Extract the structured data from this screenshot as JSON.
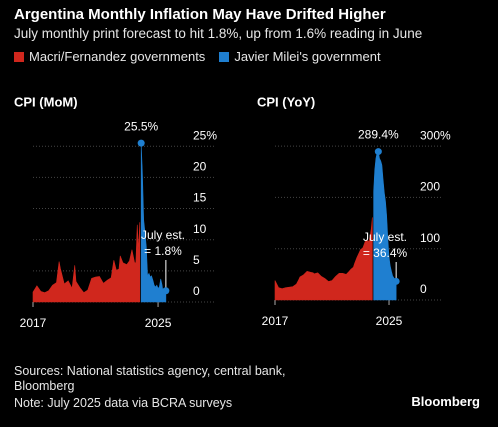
{
  "header": {
    "title": "Argentina Monthly Inflation May Have Drifted Higher",
    "subtitle": "July monthly print forecast to hit 1.8%, up from 1.6% reading in June"
  },
  "footer": {
    "source": "Sources: National statistics agency, central bank, Bloomberg",
    "note": "Note: July 2025 data via BCRA surveys",
    "brand": "Bloomberg"
  },
  "chart_data": [
    {
      "type": "area",
      "title": "CPI (MoM)",
      "annotation": "July est.",
      "x": [
        2017.0,
        2017.25,
        2017.5,
        2017.75,
        2018.0,
        2018.25,
        2018.5,
        2018.67,
        2018.75,
        2019.0,
        2019.25,
        2019.5,
        2019.67,
        2019.75,
        2020.0,
        2020.25,
        2020.5,
        2020.75,
        2021.0,
        2021.25,
        2021.5,
        2021.75,
        2022.0,
        2022.17,
        2022.33,
        2022.5,
        2022.58,
        2022.75,
        2023.0,
        2023.17,
        2023.33,
        2023.5,
        2023.58,
        2023.67,
        2023.75,
        2023.83,
        2023.92,
        2024.0,
        2024.08,
        2024.17,
        2024.25,
        2024.33,
        2024.42,
        2024.5,
        2024.58,
        2024.67,
        2024.75,
        2024.83,
        2024.92,
        2025.0,
        2025.08,
        2025.17,
        2025.25,
        2025.33,
        2025.42,
        2025.5
      ],
      "xlim": [
        2017,
        2025.7
      ],
      "xticks": [
        2017,
        2025
      ],
      "ylim": [
        0,
        26
      ],
      "yticks": [
        0,
        5,
        10,
        15,
        20,
        {
          "value": 25,
          "label": "25%"
        }
      ],
      "grid": true,
      "series": [
        {
          "name": "Macri/Fernandez governments",
          "color": "#d0271d",
          "values": [
            1.6,
            2.6,
            1.7,
            1.5,
            1.8,
            2.7,
            3.1,
            6.5,
            5.4,
            2.9,
            3.4,
            2.2,
            5.9,
            3.3,
            2.3,
            1.5,
            1.9,
            3.8,
            4.0,
            4.1,
            3.0,
            3.5,
            3.9,
            6.7,
            5.1,
            5.3,
            7.4,
            6.3,
            6.0,
            6.6,
            8.4,
            6.3,
            6.3,
            12.4,
            8.3,
            12.8,
            null,
            null,
            null,
            null,
            null,
            null,
            null,
            null,
            null,
            null,
            null,
            null,
            null,
            null,
            null,
            null,
            null,
            null,
            null,
            null
          ]
        },
        {
          "name": "Javier Milei's government",
          "color": "#1f7fd0",
          "values": [
            null,
            null,
            null,
            null,
            null,
            null,
            null,
            null,
            null,
            null,
            null,
            null,
            null,
            null,
            null,
            null,
            null,
            null,
            null,
            null,
            null,
            null,
            null,
            null,
            null,
            null,
            null,
            null,
            null,
            null,
            null,
            null,
            null,
            null,
            null,
            null,
            25.5,
            20.6,
            13.2,
            11.0,
            8.8,
            4.2,
            4.6,
            4.0,
            4.2,
            3.5,
            2.7,
            2.4,
            2.7,
            2.2,
            2.4,
            3.7,
            2.8,
            1.5,
            1.6,
            1.8
          ],
          "value_labels": [
            null,
            null,
            null,
            null,
            null,
            null,
            null,
            null,
            null,
            null,
            null,
            null,
            null,
            null,
            null,
            null,
            null,
            null,
            null,
            null,
            null,
            null,
            null,
            null,
            null,
            null,
            null,
            null,
            null,
            null,
            null,
            null,
            null,
            null,
            null,
            null,
            "25.5%",
            null,
            null,
            null,
            null,
            null,
            null,
            null,
            null,
            null,
            null,
            null,
            null,
            null,
            null,
            null,
            null,
            null,
            null,
            "= 1.8%"
          ]
        }
      ]
    },
    {
      "type": "area",
      "title": "CPI (YoY)",
      "annotation": "July est.",
      "x": [
        2017.0,
        2017.25,
        2017.5,
        2017.75,
        2018.0,
        2018.25,
        2018.5,
        2018.67,
        2018.75,
        2019.0,
        2019.25,
        2019.5,
        2019.67,
        2019.75,
        2020.0,
        2020.25,
        2020.5,
        2020.75,
        2021.0,
        2021.25,
        2021.5,
        2021.75,
        2022.0,
        2022.17,
        2022.33,
        2022.5,
        2022.58,
        2022.75,
        2023.0,
        2023.17,
        2023.33,
        2023.5,
        2023.58,
        2023.67,
        2023.75,
        2023.83,
        2023.92,
        2024.0,
        2024.08,
        2024.17,
        2024.25,
        2024.33,
        2024.42,
        2024.5,
        2024.58,
        2024.67,
        2024.75,
        2024.83,
        2024.92,
        2025.0,
        2025.08,
        2025.17,
        2025.25,
        2025.33,
        2025.42,
        2025.5
      ],
      "xlim": [
        2017,
        2025.7
      ],
      "xticks": [
        2017,
        2025
      ],
      "ylim": [
        0,
        310
      ],
      "yticks": [
        0,
        100,
        200,
        {
          "value": 300,
          "label": "300%"
        }
      ],
      "grid": true,
      "series": [
        {
          "color": "#d0271d",
          "values": [
            38,
            24,
            22,
            24,
            25,
            26,
            31,
            40,
            45,
            49,
            56,
            54,
            53,
            51,
            53,
            46,
            42,
            36,
            38,
            46,
            52,
            52,
            50,
            55,
            60,
            64,
            71,
            83,
            98,
            102,
            114,
            116,
            113,
            124,
            138,
            161,
            null,
            null,
            null,
            null,
            null,
            null,
            null,
            null,
            null,
            null,
            null,
            null,
            null,
            null,
            null,
            null,
            null,
            null,
            null,
            null
          ]
        },
        {
          "color": "#1f7fd0",
          "values": [
            null,
            null,
            null,
            null,
            null,
            null,
            null,
            null,
            null,
            null,
            null,
            null,
            null,
            null,
            null,
            null,
            null,
            null,
            null,
            null,
            null,
            null,
            null,
            null,
            null,
            null,
            null,
            null,
            null,
            null,
            null,
            null,
            null,
            null,
            null,
            null,
            211.4,
            254,
            276,
            288,
            289.4,
            276,
            271,
            263,
            236,
            209,
            193,
            166,
            118,
            84.5,
            66.9,
            55.9,
            47.3,
            43.5,
            39.4,
            36.4
          ],
          "value_labels": [
            null,
            null,
            null,
            null,
            null,
            null,
            null,
            null,
            null,
            null,
            null,
            null,
            null,
            null,
            null,
            null,
            null,
            null,
            null,
            null,
            null,
            null,
            null,
            null,
            null,
            null,
            null,
            null,
            null,
            null,
            null,
            null,
            null,
            null,
            null,
            null,
            null,
            null,
            null,
            null,
            "289.4%",
            null,
            null,
            null,
            null,
            null,
            null,
            null,
            null,
            null,
            null,
            null,
            null,
            null,
            null,
            "= 36.4%"
          ]
        }
      ]
    }
  ]
}
